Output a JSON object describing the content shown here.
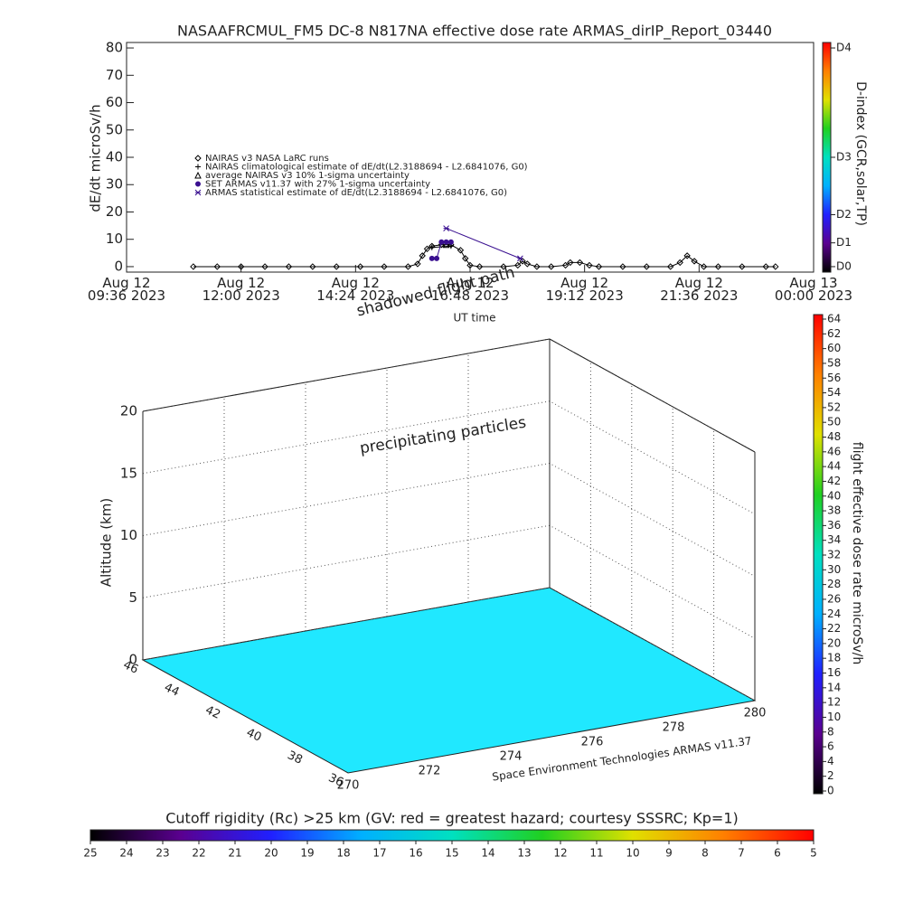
{
  "chart_data": [
    {
      "type": "line",
      "title": "NASAAFRCMUL_FM5 DC-8    N817NA effective dose rate ARMAS_dirIP_Report_03440",
      "ylabel": "dE/dt microSv/h",
      "xlabel": "UT time",
      "xlim": [
        9.6,
        24
      ],
      "xticks": [
        {
          "value": 9.6,
          "label": "Aug 12\n09:36 2023"
        },
        {
          "value": 12,
          "label": "Aug 12\n12:00 2023"
        },
        {
          "value": 14.4,
          "label": "Aug 12\n14:24 2023"
        },
        {
          "value": 16.8,
          "label": "Aug 12\n16:48 2023"
        },
        {
          "value": 19.2,
          "label": "Aug 12\n19:12 2023"
        },
        {
          "value": 21.6,
          "label": "Aug 12\n21:36 2023"
        },
        {
          "value": 24,
          "label": "Aug 13\n00:00 2023"
        }
      ],
      "ylim": [
        -2,
        82
      ],
      "yticks": [
        0,
        10,
        20,
        30,
        40,
        50,
        60,
        70,
        80
      ],
      "y2label": "D-index (GCR,solar,TP)",
      "y2lim": [
        -2,
        82
      ],
      "y2ticks": [
        {
          "value": 0,
          "label": "D0"
        },
        {
          "value": 8.7,
          "label": "D1"
        },
        {
          "value": 19,
          "label": "D2"
        },
        {
          "value": 40,
          "label": "D3"
        },
        {
          "value": 80,
          "label": "D4"
        }
      ],
      "y2colors": [
        "#000000",
        "#5a0090",
        "#2020ff",
        "#00b0ff",
        "#00e0c0",
        "#20d020",
        "#e0e000",
        "#ff8000",
        "#ff0000"
      ],
      "series": [
        {
          "name": "NAIRAS v3 NASA LaRC runs",
          "marker": "diamond",
          "color": "#000000",
          "x": [
            11,
            11.5,
            12,
            12.5,
            13,
            13.5,
            14,
            14.5,
            15,
            15.5,
            15.7,
            15.8,
            15.9,
            16,
            16.2,
            16.4,
            16.6,
            16.7,
            16.8,
            17,
            17.5,
            17.8,
            17.9,
            18,
            18.2,
            18.5,
            18.8,
            18.9,
            19.1,
            19.3,
            19.5,
            20,
            20.5,
            21,
            21.2,
            21.35,
            21.5,
            21.7,
            22,
            22.5,
            23,
            23.2
          ],
          "values": [
            0,
            0,
            0,
            0,
            0,
            0,
            0,
            0,
            0,
            0,
            1,
            4,
            6.5,
            7.5,
            8,
            8,
            6,
            3,
            0.5,
            0,
            0,
            0.5,
            2,
            1,
            0,
            0,
            0.5,
            1.5,
            1.5,
            0.5,
            0,
            0,
            0,
            0,
            1.5,
            4,
            2,
            0,
            0,
            0,
            0,
            0
          ]
        },
        {
          "name": "NAIRAS climatological estimate of dE/dt(L2.3188694 - L2.6841076, G0)",
          "marker": "plus",
          "color": "#000000",
          "x": [
            16,
            16.4
          ],
          "values": [
            7,
            7.5
          ]
        },
        {
          "name": "average NAIRAS v3 10% 1-sigma uncertainty",
          "marker": "triangle",
          "color": "#000000",
          "x": [
            16.3
          ],
          "values": [
            8
          ]
        },
        {
          "name": "SET ARMAS v11.37 with 27% 1-sigma uncertainty",
          "marker": "circle",
          "color": "#3a1090",
          "x": [
            16,
            16.1,
            16.2,
            16.3,
            16.4
          ],
          "values": [
            3,
            3,
            9,
            9,
            9
          ]
        },
        {
          "name": "ARMAS statistical estimate of dE/dt(L2.3188694 - L2.6841076, G0)",
          "marker": "star",
          "color": "#3a1090",
          "x": [
            16.3,
            17.85
          ],
          "values": [
            14,
            3
          ]
        }
      ]
    },
    {
      "type": "surface3d",
      "zlabel": "Altitude (km)",
      "xlim": [
        270,
        280
      ],
      "xticks": [
        270,
        272,
        274,
        276,
        278,
        280
      ],
      "ylim": [
        36,
        46
      ],
      "yticks": [
        36,
        38,
        40,
        42,
        44,
        46
      ],
      "zlim": [
        0,
        20
      ],
      "zticks": [
        0,
        5,
        10,
        15,
        20
      ],
      "annotations": [
        "precipitating particles",
        "shadowed flight path"
      ],
      "credit": "Space Environment Technologies ARMAS v11.37",
      "floor_color": "#20e8ff"
    },
    {
      "type": "colorbar",
      "orientation": "vertical",
      "label": "flight effective dose rate microSv/h",
      "lim": [
        0,
        64
      ],
      "ticks": [
        0,
        2,
        4,
        6,
        8,
        10,
        12,
        14,
        16,
        18,
        20,
        22,
        24,
        26,
        28,
        30,
        32,
        34,
        36,
        38,
        40,
        42,
        44,
        46,
        48,
        50,
        52,
        54,
        56,
        58,
        60,
        62,
        64
      ],
      "colors": [
        "#000000",
        "#5a0090",
        "#2020ff",
        "#00b0ff",
        "#00e0c0",
        "#20d020",
        "#e0e000",
        "#ff8000",
        "#ff0000"
      ]
    },
    {
      "type": "colorbar",
      "orientation": "horizontal",
      "title": "Cutoff rigidity (Rc) >25 km (GV: red = greatest hazard; courtesy SSSRC; Kp=1)",
      "lim": [
        25,
        5
      ],
      "ticks": [
        25,
        24,
        23,
        22,
        21,
        20,
        19,
        18,
        17,
        16,
        15,
        14,
        13,
        12,
        11,
        10,
        9,
        8,
        7,
        6,
        5
      ],
      "colors": [
        "#000000",
        "#5a0090",
        "#2020ff",
        "#00b0ff",
        "#00e0c0",
        "#20d020",
        "#e0e000",
        "#ff8000",
        "#ff0000"
      ]
    }
  ]
}
